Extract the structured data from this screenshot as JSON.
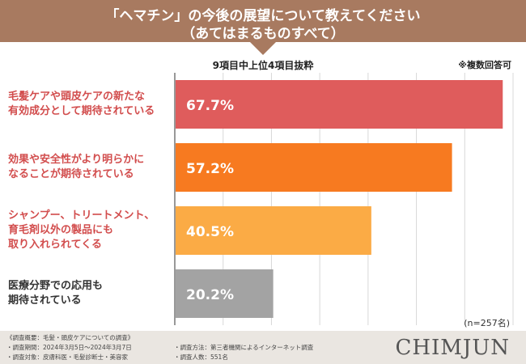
{
  "header": {
    "line1": "「ヘマチン」の今後の展望について教えてください",
    "line2": "（あてはまるものすべて）"
  },
  "subtitle": "9項目中上位4項目抜粋",
  "note": "※複数回答可",
  "sample_size": "(n=257名)",
  "footer": {
    "overview": "《調査概要：毛髪・頭皮ケアについての調査》",
    "period": "・調査期間：2024年3月5日～2024年3月7日",
    "method": "・調査方法：第三者機関によるインターネット調査",
    "target": "・調査対象：皮膚科医・毛髪診断士・美容家",
    "count": "・調査人数：551名",
    "brand": "CHIMJUN"
  },
  "chart_data": {
    "type": "bar",
    "orientation": "horizontal",
    "categories": [
      "毛髪ケアや頭皮ケアの新たな\n有効成分として期待されている",
      "効果や安全性がより明らかに\nなることが期待されている",
      "シャンプー、トリートメント、\n育毛剤以外の製品にも\n取り入れられてくる",
      "医療分野での応用も\n期待されている"
    ],
    "values": [
      67.7,
      57.2,
      40.5,
      20.2
    ],
    "value_labels": [
      "67.7%",
      "57.2%",
      "40.5%",
      "20.2%"
    ],
    "colors": [
      "#df5c5c",
      "#f77a20",
      "#fbab45",
      "#a3a3a3"
    ],
    "label_colors": [
      "#d24d4d",
      "#d24d4d",
      "#d24d4d",
      "#333333"
    ],
    "xlim": [
      0,
      70
    ],
    "grid": true
  }
}
